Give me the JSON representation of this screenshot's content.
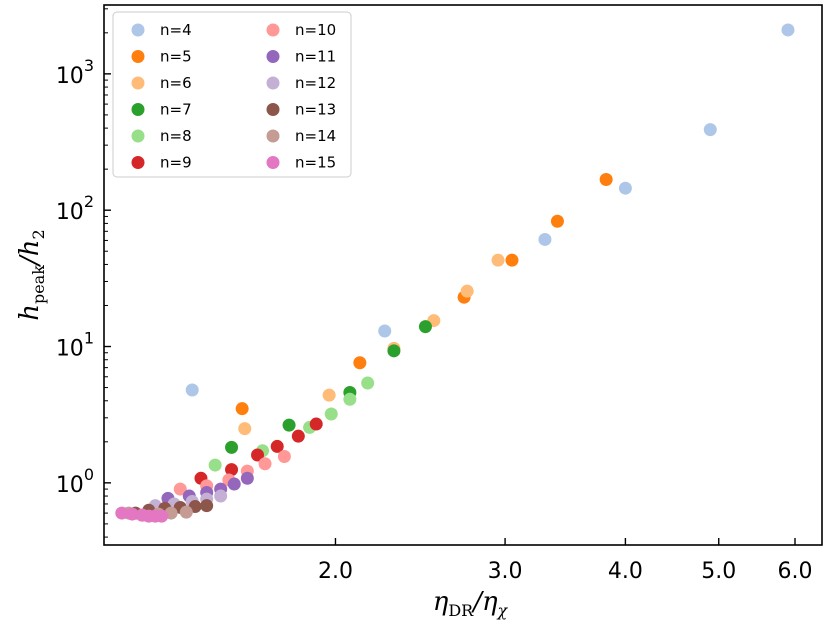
{
  "chart_data": {
    "type": "scatter",
    "xlabel": "η_DR/η_χ",
    "ylabel": "h_peak/h_2",
    "x_scale": "log",
    "y_scale": "log",
    "xlim": [
      1.15,
      6.4
    ],
    "ylim": [
      0.35,
      3200
    ],
    "x_ticks": [
      2.0,
      3.0,
      4.0,
      5.0,
      6.0
    ],
    "x_tick_labels": [
      "2.0",
      "3.0",
      "4.0",
      "5.0",
      "6.0"
    ],
    "y_ticks": [
      1,
      10,
      100,
      1000
    ],
    "grid": false,
    "legend_position": "top-left",
    "series": [
      {
        "name": "n=4",
        "color": "#aec7e8",
        "points": [
          [
            1.42,
            4.8
          ],
          [
            2.25,
            13
          ],
          [
            3.3,
            61
          ],
          [
            4.0,
            145
          ],
          [
            4.9,
            390
          ],
          [
            5.9,
            2100
          ]
        ]
      },
      {
        "name": "n=5",
        "color": "#ff7f0e",
        "points": [
          [
            1.6,
            3.5
          ],
          [
            2.12,
            7.6
          ],
          [
            2.72,
            23
          ],
          [
            3.05,
            43
          ],
          [
            3.4,
            83
          ],
          [
            3.82,
            168
          ]
        ]
      },
      {
        "name": "n=6",
        "color": "#ffbb78",
        "points": [
          [
            1.61,
            2.5
          ],
          [
            1.97,
            4.4
          ],
          [
            2.3,
            9.7
          ],
          [
            2.53,
            15.5
          ],
          [
            2.74,
            25.5
          ],
          [
            2.95,
            43
          ]
        ]
      },
      {
        "name": "n=7",
        "color": "#2ca02c",
        "points": [
          [
            1.56,
            1.82
          ],
          [
            1.79,
            2.65
          ],
          [
            2.07,
            4.6
          ],
          [
            2.3,
            9.3
          ],
          [
            2.48,
            14
          ]
        ]
      },
      {
        "name": "n=8",
        "color": "#98df8a",
        "points": [
          [
            1.5,
            1.35
          ],
          [
            1.68,
            1.72
          ],
          [
            1.88,
            2.55
          ],
          [
            1.98,
            3.2
          ],
          [
            2.07,
            4.1
          ],
          [
            2.16,
            5.4
          ]
        ]
      },
      {
        "name": "n=9",
        "color": "#d62728",
        "points": [
          [
            1.45,
            1.08
          ],
          [
            1.56,
            1.25
          ],
          [
            1.66,
            1.6
          ],
          [
            1.74,
            1.85
          ],
          [
            1.83,
            2.2
          ],
          [
            1.91,
            2.7
          ]
        ]
      },
      {
        "name": "n=10",
        "color": "#ff9896",
        "points": [
          [
            1.38,
            0.9
          ],
          [
            1.47,
            0.95
          ],
          [
            1.55,
            1.05
          ],
          [
            1.62,
            1.22
          ],
          [
            1.69,
            1.38
          ],
          [
            1.77,
            1.56
          ]
        ]
      },
      {
        "name": "n=11",
        "color": "#9467bd",
        "points": [
          [
            1.34,
            0.77
          ],
          [
            1.41,
            0.8
          ],
          [
            1.47,
            0.85
          ],
          [
            1.52,
            0.9
          ],
          [
            1.57,
            0.98
          ],
          [
            1.62,
            1.08
          ]
        ]
      },
      {
        "name": "n=12",
        "color": "#c5b0d5",
        "points": [
          [
            1.3,
            0.68
          ],
          [
            1.36,
            0.7
          ],
          [
            1.42,
            0.73
          ],
          [
            1.47,
            0.76
          ],
          [
            1.52,
            0.8
          ]
        ]
      },
      {
        "name": "n=13",
        "color": "#8c564b",
        "points": [
          [
            1.24,
            0.6
          ],
          [
            1.28,
            0.63
          ],
          [
            1.33,
            0.65
          ],
          [
            1.38,
            0.66
          ],
          [
            1.43,
            0.67
          ],
          [
            1.47,
            0.68
          ]
        ]
      },
      {
        "name": "n=14",
        "color": "#c49c94",
        "points": [
          [
            1.22,
            0.6
          ],
          [
            1.26,
            0.58
          ],
          [
            1.31,
            0.59
          ],
          [
            1.35,
            0.6
          ],
          [
            1.4,
            0.61
          ]
        ]
      },
      {
        "name": "n=15",
        "color": "#e377c2",
        "points": [
          [
            1.2,
            0.6
          ],
          [
            1.23,
            0.59
          ],
          [
            1.26,
            0.58
          ],
          [
            1.28,
            0.57
          ],
          [
            1.3,
            0.57
          ],
          [
            1.32,
            0.57
          ]
        ]
      }
    ]
  }
}
